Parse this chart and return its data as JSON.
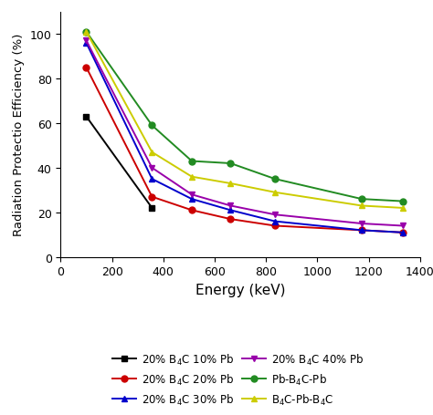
{
  "series": [
    {
      "label": "20% B$_4$C 10% Pb",
      "color": "#000000",
      "marker": "s",
      "x": [
        100,
        356
      ],
      "y": [
        63,
        22
      ]
    },
    {
      "label": "20% B$_4$C 20% Pb",
      "color": "#cc0000",
      "marker": "o",
      "x": [
        100,
        356,
        511,
        662,
        835,
        1173,
        1332
      ],
      "y": [
        85,
        27,
        21,
        17,
        14,
        12,
        11
      ]
    },
    {
      "label": "20% B$_4$C 30% Pb",
      "color": "#0000cc",
      "marker": "^",
      "x": [
        100,
        356,
        511,
        662,
        835,
        1173,
        1332
      ],
      "y": [
        96,
        35,
        26,
        21,
        16,
        12,
        11
      ]
    },
    {
      "label": "20% B$_4$C 40% Pb",
      "color": "#9900aa",
      "marker": "v",
      "x": [
        100,
        356,
        511,
        662,
        835,
        1173,
        1332
      ],
      "y": [
        97,
        40,
        28,
        23,
        19,
        15,
        14
      ]
    },
    {
      "label": "Pb-B$_4$C-Pb",
      "color": "#228B22",
      "marker": "o",
      "x": [
        100,
        356,
        511,
        662,
        835,
        1173,
        1332
      ],
      "y": [
        101,
        59,
        43,
        42,
        35,
        26,
        25
      ]
    },
    {
      "label": "B$_4$C-Pb-B$_4$C",
      "color": "#cccc00",
      "marker": "^",
      "x": [
        100,
        356,
        511,
        662,
        835,
        1173,
        1332
      ],
      "y": [
        101,
        47,
        36,
        33,
        29,
        23,
        22
      ]
    }
  ],
  "xlabel": "Energy (keV)",
  "ylabel": "Radiation Protectio Efficiency (%)",
  "xlim": [
    0,
    1400
  ],
  "ylim": [
    0,
    110
  ],
  "xticks": [
    0,
    200,
    400,
    600,
    800,
    1000,
    1200,
    1400
  ],
  "yticks": [
    0,
    20,
    40,
    60,
    80,
    100
  ],
  "xlabel_fontsize": 11,
  "ylabel_fontsize": 9.5,
  "tick_fontsize": 9,
  "legend_fontsize": 8.5
}
